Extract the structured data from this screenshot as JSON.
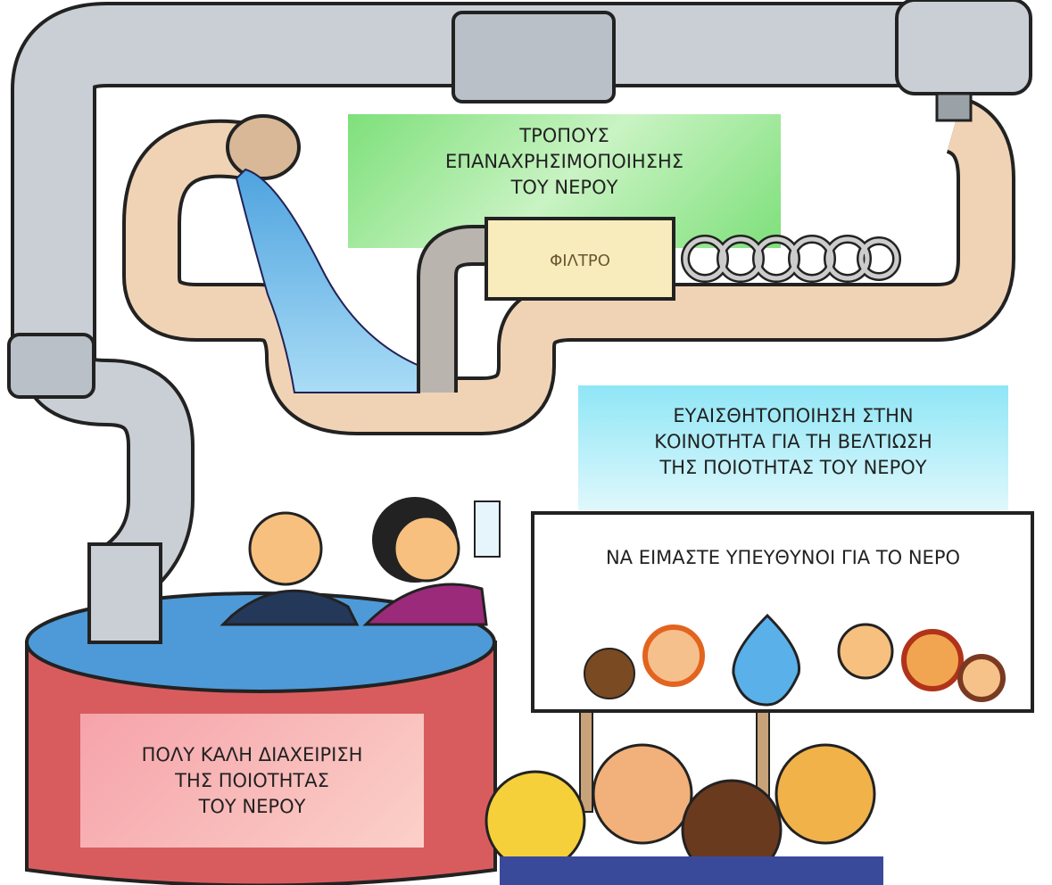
{
  "reuse_box": {
    "lines": [
      "ΤΡΟΠΟΥΣ",
      "ΕΠΑΝΑΧΡΗΣΙΜΟΠΟΙΗΣΗΣ",
      "ΤΟΥ ΝΕΡΟΥ"
    ]
  },
  "filter_label": "ΦΙΛΤΡΟ",
  "awareness_box": {
    "lines": [
      "ΕΥΑΙΣΘΗΤΟΠΟΙΗΣΗ ΣΤΗΝ",
      "ΚΟΙΝΟΤΗΤΑ ΓΙΑ ΤΗ ΒΕΛΤΙΩΣΗ",
      "ΤΗΣ ΠΟΙΟΤΗΤΑΣ ΤΟΥ ΝΕΡΟΥ"
    ]
  },
  "sign": "ΝΑ ΕΙΜΑΣΤΕ ΥΠΕΥΘΥΝΟΙ ΓΙΑ ΤΟ ΝΕΡΟ",
  "management_box": {
    "lines": [
      "ΠΟΛΥ ΚΑΛΗ ΔΙΑΧΕΙΡΙΣΗ",
      "ΤΗΣ ΠΟΙΟΤΗΤΑΣ",
      "ΤΟΥ ΝΕΡΟΥ"
    ]
  }
}
